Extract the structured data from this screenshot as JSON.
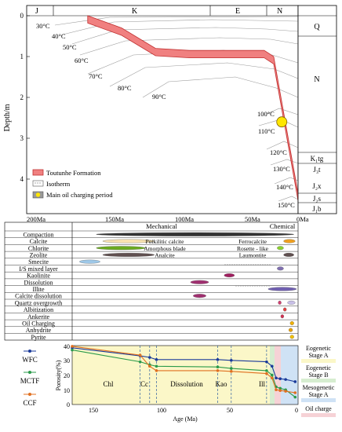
{
  "burial": {
    "periods": [
      "J",
      "K",
      "E",
      "N"
    ],
    "y_axis_label": "Depth/m",
    "y_ticks": [
      "0",
      "1",
      "2",
      "3",
      "4"
    ],
    "isotherms_left": [
      "30°C",
      "40°C",
      "50°C",
      "60°C",
      "70°C",
      "80°C",
      "90°C"
    ],
    "isotherms_right": [
      "100°C",
      "110°C",
      "120°C",
      "130°C",
      "140°C",
      "150°C"
    ],
    "strata": [
      "Q",
      "N",
      "K₁tg",
      "J₃t",
      "J₂x",
      "J₂s",
      "J₁b"
    ],
    "legend": [
      "Toutunhe Formation",
      "Isotherm",
      "Main oil charging period"
    ],
    "x_ticks": [
      "200Ma",
      "150Ma",
      "100Ma",
      "50Ma",
      "0Ma"
    ],
    "formation_top": [
      [
        155,
        0.0
      ],
      [
        130,
        0.3
      ],
      [
        105,
        0.8
      ],
      [
        80,
        0.85
      ],
      [
        25,
        0.85
      ],
      [
        18,
        1.0
      ],
      [
        0,
        4.35
      ]
    ],
    "formation_thickness": 0.18,
    "charging_point": {
      "age": 12,
      "depth": 2.6
    },
    "colors": {
      "formation": "#f08080",
      "formation_edge": "#c03030",
      "charge": "#ffe600"
    }
  },
  "diagenesis": {
    "header": {
      "left": "Mechanical",
      "right": "Chemical"
    },
    "rows": [
      {
        "label": "Compaction",
        "note_left": "",
        "note_right": "",
        "bars": [
          {
            "from": 155,
            "to": 2,
            "color": "#333333"
          }
        ]
      },
      {
        "label": "Calcite",
        "note_left": "Poikilitic calcite",
        "note_right": "Ferrocalcite",
        "bars": [
          {
            "from": 150,
            "to": 110,
            "color": "#f8e2b0"
          },
          {
            "from": 10,
            "to": 1,
            "color": "#f0a020"
          }
        ]
      },
      {
        "label": "Chlorite",
        "note_left": "Amorphous blade",
        "note_right": "Rosette - like",
        "bars": [
          {
            "from": 155,
            "to": 117,
            "color": "#6aaa20"
          },
          {
            "from": 15,
            "to": 10,
            "color": "#8cd030"
          }
        ]
      },
      {
        "label": "Zeolite",
        "note_left": "Analcite",
        "note_right": "Laumontite",
        "bars": [
          {
            "from": 150,
            "to": 110,
            "color": "#605050"
          },
          {
            "from": 10,
            "to": 2,
            "color": "#605050"
          }
        ]
      },
      {
        "label": "Smecite",
        "note_left": "",
        "note_right": "",
        "bars": [
          {
            "from": 168,
            "to": 152,
            "color": "#9ec8e8"
          }
        ]
      },
      {
        "label": "I/S mixed layer",
        "note_left": "",
        "note_right": "",
        "bars": [
          {
            "from": 15,
            "to": 10,
            "color": "#8070b0"
          }
        ]
      },
      {
        "label": "Kaolinite",
        "note_left": "",
        "note_right": "",
        "bars": [
          {
            "from": 56,
            "to": 48,
            "color": "#a02060"
          }
        ]
      },
      {
        "label": "Dissolution",
        "note_left": "",
        "note_right": "",
        "bars": [
          {
            "from": 82,
            "to": 68,
            "color": "#a03070"
          }
        ]
      },
      {
        "label": "Illite",
        "note_left": "",
        "note_right": "",
        "bars": [
          {
            "from": 22,
            "to": 0,
            "color": "#7060b0"
          }
        ]
      },
      {
        "label": "Calcite dissolution",
        "note_left": "",
        "note_right": "",
        "bars": [
          {
            "from": 80,
            "to": 70,
            "color": "#a03070"
          }
        ]
      },
      {
        "label": "Quartz overgrowth",
        "note_left": "",
        "note_right": "",
        "bars": [
          {
            "from": 14,
            "to": 12,
            "color": "#d04070"
          },
          {
            "from": 7,
            "to": 1,
            "color": "#c8c0e8"
          }
        ]
      },
      {
        "label": "Albitization",
        "note_left": "",
        "note_right": "",
        "bars": [
          {
            "from": 10,
            "to": 8,
            "color": "#e04040"
          }
        ]
      },
      {
        "label": "Ankerite",
        "note_left": "",
        "note_right": "",
        "bars": [
          {
            "from": 12,
            "to": 10,
            "color": "#d03050"
          }
        ]
      },
      {
        "label": "Oil Charging",
        "note_left": "",
        "note_right": "",
        "bars": [
          {
            "from": 5,
            "to": 2,
            "color": "#f0b000"
          }
        ]
      },
      {
        "label": "Anhydrite",
        "note_left": "",
        "note_right": "",
        "bars": [
          {
            "from": 6,
            "to": 3,
            "color": "#e8a000"
          }
        ]
      },
      {
        "label": "Pyrite",
        "note_left": "",
        "note_right": "",
        "bars": [
          {
            "from": 5,
            "to": 2,
            "color": "#f0c000"
          }
        ]
      }
    ]
  },
  "porosity": {
    "y_label": "Porosity(%)",
    "x_label": "Age (Ma)",
    "y_ticks": [
      "0",
      "10",
      "20",
      "30",
      "40"
    ],
    "x_ticks": [
      "150",
      "100",
      "50",
      "0"
    ],
    "stage_labels": [
      "Chl",
      "Cc",
      "Dissolution",
      "Kao",
      "Ill"
    ],
    "legend": [
      "WFC",
      "MCTF",
      "CCF"
    ],
    "series": [
      {
        "name": "WFC",
        "color": "#1a3a9a",
        "points": [
          [
            165,
            38.5
          ],
          [
            115,
            33
          ],
          [
            108,
            32
          ],
          [
            103,
            30.5
          ],
          [
            58,
            30.5
          ],
          [
            48,
            30
          ],
          [
            22,
            29
          ],
          [
            18,
            26
          ],
          [
            15,
            18
          ],
          [
            12,
            17.5
          ],
          [
            8,
            17
          ],
          [
            1,
            15.5
          ]
        ]
      },
      {
        "name": "MCTF",
        "color": "#2a9a4a",
        "points": [
          [
            165,
            37
          ],
          [
            115,
            29
          ],
          [
            108,
            27
          ],
          [
            103,
            26
          ],
          [
            58,
            25.5
          ],
          [
            48,
            24.5
          ],
          [
            22,
            23
          ],
          [
            18,
            20
          ],
          [
            15,
            12
          ],
          [
            12,
            11
          ],
          [
            8,
            10
          ],
          [
            1,
            5
          ]
        ]
      },
      {
        "name": "CCF",
        "color": "#e07020",
        "points": [
          [
            165,
            39.5
          ],
          [
            115,
            33.5
          ],
          [
            108,
            26
          ],
          [
            103,
            23
          ],
          [
            58,
            23
          ],
          [
            48,
            22.5
          ],
          [
            22,
            21
          ],
          [
            18,
            18
          ],
          [
            15,
            10
          ],
          [
            12,
            9.5
          ],
          [
            8,
            9
          ],
          [
            1,
            8
          ]
        ]
      }
    ],
    "stage_lines": [
      115,
      108,
      103,
      58,
      48,
      22
    ],
    "right_labels": [
      "Eogenetic Stage A",
      "Eogenetic Stage B",
      "Mesogenetic Stage A",
      "Oil charge"
    ]
  }
}
